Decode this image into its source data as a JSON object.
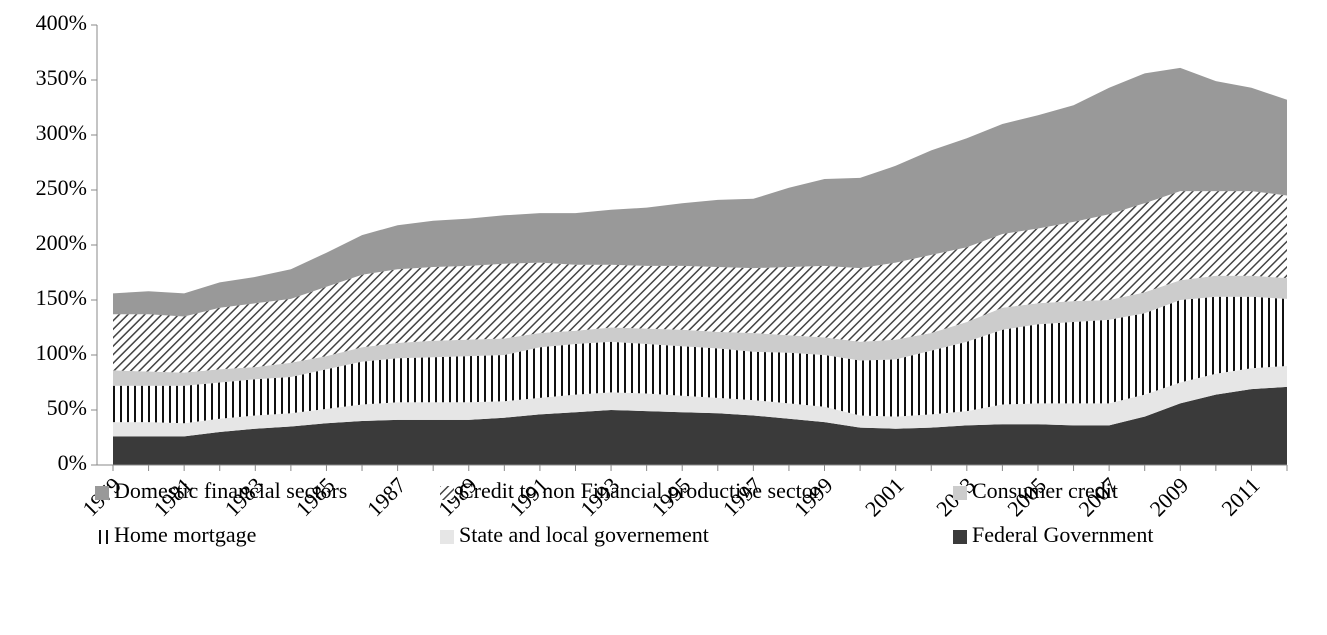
{
  "chart_data": {
    "type": "stacked_area",
    "categories": [
      "1979",
      null,
      "1981",
      null,
      "1983",
      null,
      "1985",
      null,
      "1987",
      null,
      "1989",
      null,
      "1991",
      null,
      "1993",
      null,
      "1995",
      null,
      "1997",
      null,
      "1999",
      null,
      "2001",
      null,
      "2003",
      null,
      "2005",
      null,
      "2007",
      null,
      "2009",
      null,
      "2011",
      null
    ],
    "series": [
      {
        "name": "Federal Government",
        "color": "#3a3a3a",
        "values": [
          26,
          26,
          26,
          30,
          33,
          35,
          38,
          40,
          41,
          41,
          41,
          43,
          46,
          48,
          50,
          49,
          48,
          47,
          45,
          42,
          39,
          34,
          33,
          34,
          36,
          37,
          37,
          36,
          36,
          44,
          56,
          64,
          69,
          71
        ]
      },
      {
        "name": "State and local governement",
        "color": "#e6e6e6",
        "values": [
          13,
          13,
          12,
          12,
          12,
          12,
          13,
          15,
          16,
          16,
          16,
          15,
          15,
          16,
          16,
          16,
          15,
          14,
          14,
          14,
          14,
          11,
          11,
          12,
          13,
          18,
          19,
          20,
          20,
          20,
          19,
          19,
          19,
          19
        ]
      },
      {
        "name": "Home mortgage",
        "color": "#111111",
        "pattern": "vertical",
        "values": [
          33,
          33,
          34,
          33,
          33,
          33,
          36,
          39,
          40,
          41,
          42,
          42,
          46,
          46,
          46,
          45,
          45,
          45,
          44,
          46,
          47,
          50,
          52,
          58,
          63,
          68,
          72,
          74,
          76,
          74,
          75,
          70,
          65,
          61
        ]
      },
      {
        "name": "Consumer credit",
        "color": "#cccccc",
        "values": [
          14,
          13,
          12,
          12,
          11,
          13,
          12,
          13,
          14,
          15,
          15,
          15,
          13,
          12,
          13,
          14,
          15,
          15,
          17,
          16,
          16,
          17,
          18,
          16,
          18,
          20,
          19,
          19,
          18,
          19,
          18,
          19,
          19,
          19
        ]
      },
      {
        "name": "Credit to non Financial productive sector",
        "color": "#444444",
        "pattern": "diagonal",
        "values": [
          51,
          52,
          51,
          56,
          58,
          58,
          63,
          66,
          67,
          67,
          67,
          68,
          64,
          60,
          57,
          57,
          58,
          59,
          59,
          62,
          65,
          67,
          70,
          71,
          68,
          67,
          68,
          72,
          78,
          81,
          81,
          77,
          77,
          75
        ]
      },
      {
        "name": "Domestic financial sectors",
        "color": "#999999",
        "values": [
          19,
          21,
          21,
          23,
          24,
          27,
          31,
          36,
          40,
          42,
          43,
          44,
          45,
          47,
          50,
          53,
          57,
          61,
          63,
          72,
          79,
          82,
          88,
          95,
          99,
          100,
          103,
          106,
          115,
          118,
          112,
          100,
          94,
          87
        ]
      }
    ],
    "ylim": [
      0,
      400
    ],
    "yticks": [
      {
        "value": 0,
        "label": "0%"
      },
      {
        "value": 50,
        "label": "50%"
      },
      {
        "value": 100,
        "label": "100%"
      },
      {
        "value": 150,
        "label": "150%"
      },
      {
        "value": 200,
        "label": "200%"
      },
      {
        "value": 250,
        "label": "250%"
      },
      {
        "value": 300,
        "label": "300%"
      },
      {
        "value": 350,
        "label": "350%"
      },
      {
        "value": 400,
        "label": "400%"
      }
    ],
    "grid": false,
    "legend": "bottom"
  }
}
